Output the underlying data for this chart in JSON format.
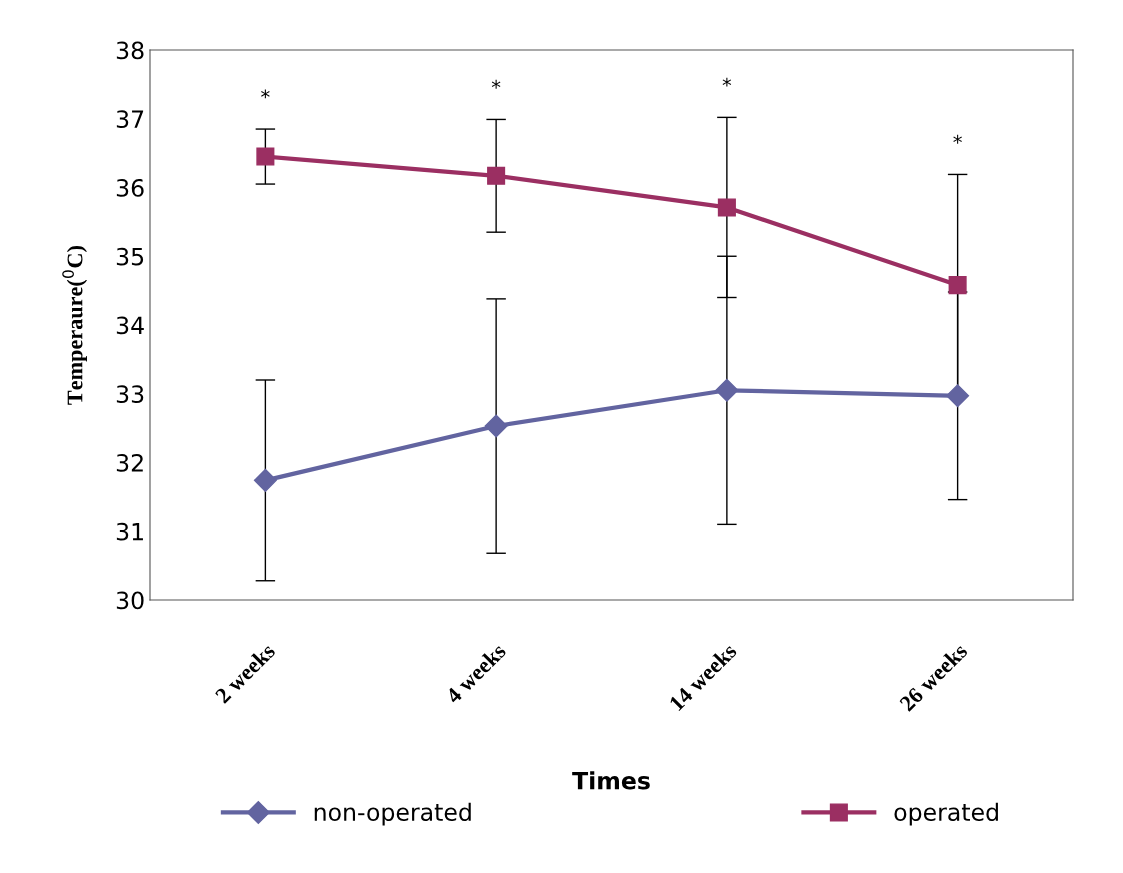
{
  "chart_data": {
    "type": "line",
    "xlabel": "Times",
    "ylabel": "Temperaure($^{0}$C)",
    "categories": [
      "2 weeks",
      "4 weeks",
      "14 weeks",
      "26 weeks"
    ],
    "series": [
      {
        "name": "non-operated",
        "color": "#6264a0",
        "marker": "diamond",
        "values": [
          31.74,
          32.53,
          33.05,
          32.97
        ],
        "errors": [
          1.46,
          1.85,
          1.95,
          1.51
        ]
      },
      {
        "name": "operated",
        "color": "#9b2f62",
        "marker": "square",
        "values": [
          36.45,
          36.17,
          35.71,
          34.58
        ],
        "errors": [
          0.4,
          0.82,
          1.31,
          1.61
        ]
      }
    ],
    "annotations": [
      "*",
      "*",
      "*",
      "*"
    ],
    "ylim": [
      30,
      38
    ],
    "yticks": [
      30,
      31,
      32,
      33,
      34,
      35,
      36,
      37,
      38
    ],
    "grid": false,
    "legend": "bottom",
    "line_style": "solid"
  }
}
